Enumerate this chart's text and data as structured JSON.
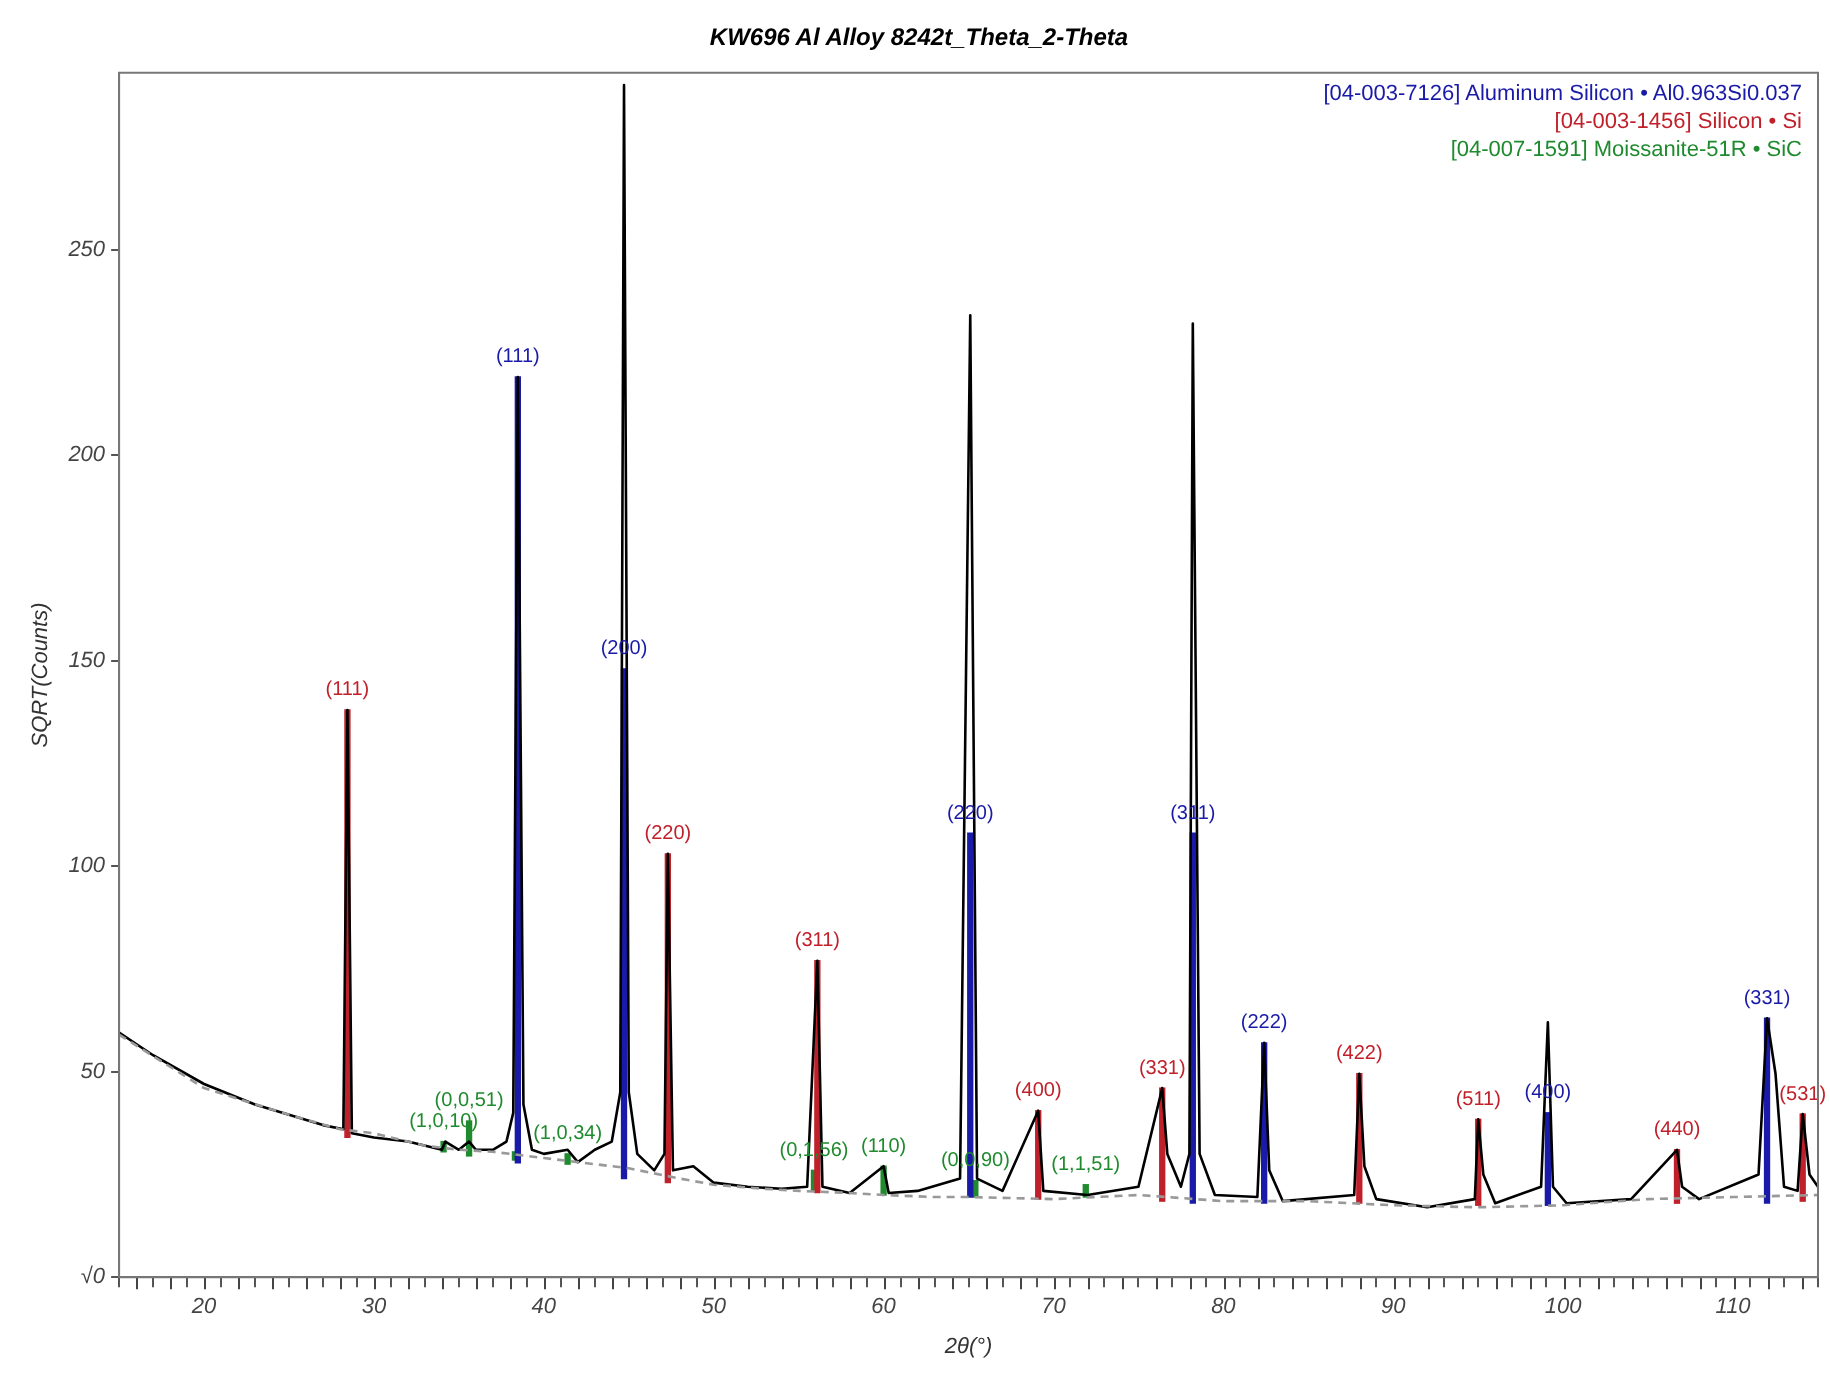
{
  "chart_data": {
    "type": "line",
    "title": "KW696 Al Alloy 8242t_Theta_2-Theta",
    "xlabel": "2θ(°)",
    "ylabel": "SQRT(Counts)",
    "xlim": [
      15,
      115
    ],
    "ylim": [
      0,
      293
    ],
    "xticks": [
      {
        "value": 16,
        "label": null
      },
      {
        "value": 18,
        "label": null
      },
      20,
      {
        "value": 22,
        "label": null
      },
      {
        "value": 24,
        "label": null
      },
      {
        "value": 26,
        "label": null
      },
      {
        "value": 28,
        "label": null
      },
      30,
      {
        "value": 32,
        "label": null
      },
      {
        "value": 34,
        "label": null
      },
      {
        "value": 36,
        "label": null
      },
      {
        "value": 38,
        "label": null
      },
      40,
      {
        "value": 42,
        "label": null
      },
      {
        "value": 44,
        "label": null
      },
      {
        "value": 46,
        "label": null
      },
      {
        "value": 48,
        "label": null
      },
      50,
      {
        "value": 52,
        "label": null
      },
      {
        "value": 54,
        "label": null
      },
      {
        "value": 56,
        "label": null
      },
      {
        "value": 58,
        "label": null
      },
      60,
      {
        "value": 62,
        "label": null
      },
      {
        "value": 64,
        "label": null
      },
      {
        "value": 66,
        "label": null
      },
      {
        "value": 68,
        "label": null
      },
      70,
      {
        "value": 72,
        "label": null
      },
      {
        "value": 74,
        "label": null
      },
      {
        "value": 76,
        "label": null
      },
      {
        "value": 78,
        "label": null
      },
      80,
      {
        "value": 82,
        "label": null
      },
      {
        "value": 84,
        "label": null
      },
      {
        "value": 86,
        "label": null
      },
      {
        "value": 88,
        "label": null
      },
      90,
      {
        "value": 92,
        "label": null
      },
      {
        "value": 94,
        "label": null
      },
      {
        "value": 96,
        "label": null
      },
      {
        "value": 98,
        "label": null
      },
      100,
      {
        "value": 102,
        "label": null
      },
      {
        "value": 104,
        "label": null
      },
      {
        "value": 106,
        "label": null
      },
      {
        "value": 108,
        "label": null
      },
      110,
      {
        "value": 112,
        "label": null
      },
      {
        "value": 114,
        "label": null
      }
    ],
    "yticks": [
      {
        "value": 0,
        "label": "√0"
      },
      50,
      100,
      150,
      200,
      250
    ],
    "grid": false,
    "legend": "top right",
    "series": [
      {
        "color": "#999999",
        "line_style": "dashed",
        "x": [
          15,
          20,
          25,
          28,
          30,
          33,
          35,
          37,
          40,
          42,
          45,
          48,
          50,
          53,
          55,
          58,
          60,
          63,
          65,
          70,
          75,
          80,
          85,
          90,
          95,
          100,
          105,
          110,
          115
        ],
        "values": [
          59,
          46,
          39.5,
          36,
          35,
          32,
          31,
          30.5,
          29,
          28,
          26.5,
          24,
          22.5,
          21.5,
          21,
          20.5,
          20,
          19.5,
          19.5,
          19,
          20,
          18.5,
          18.5,
          17.5,
          17,
          17.5,
          19,
          19.5,
          20
        ]
      },
      {
        "color": "#000000",
        "line_style": "solid",
        "x": [
          15,
          17,
          20,
          23,
          25,
          27,
          28.2,
          28.44,
          28.7,
          30,
          32,
          34,
          34.2,
          35,
          35.6,
          36,
          37,
          37.8,
          38.2,
          38.47,
          38.8,
          39.3,
          40,
          41.4,
          42,
          43,
          44,
          44.5,
          44.72,
          45,
          45.5,
          46.5,
          47.1,
          47.3,
          47.6,
          48.8,
          50,
          52,
          54,
          55.5,
          56.1,
          56.4,
          58,
          60,
          60.3,
          62,
          64.5,
          65.1,
          65.5,
          67,
          69.1,
          69.4,
          72,
          75,
          76.4,
          76.7,
          77.5,
          78,
          78.2,
          78.6,
          79.5,
          82,
          82.4,
          82.7,
          83.5,
          87.7,
          88,
          88.3,
          89,
          92,
          94.8,
          95,
          95.3,
          96,
          98.7,
          99.1,
          99.4,
          100.2,
          104,
          106.7,
          107,
          108,
          111.5,
          112,
          112.5,
          113,
          113.8,
          114.1,
          114.5,
          115
        ],
        "values": [
          59.5,
          54,
          47,
          42,
          39.5,
          37,
          36,
          138,
          35,
          34,
          33,
          31,
          33,
          31,
          33,
          31,
          31,
          33,
          40,
          219,
          42,
          31,
          30,
          31,
          28,
          31,
          33,
          45,
          290,
          45,
          30,
          26,
          30,
          103,
          26,
          27,
          23,
          22,
          21.5,
          22,
          77,
          22,
          20.5,
          27,
          20.5,
          21,
          24,
          234,
          24,
          21,
          40.5,
          21,
          20,
          22,
          46,
          30,
          22,
          30,
          232,
          30,
          20,
          19.5,
          57,
          26,
          18.5,
          20,
          49.5,
          27,
          19,
          17,
          19,
          38.4,
          25,
          18,
          22,
          62,
          22,
          18,
          19,
          31,
          22,
          19,
          25,
          63,
          49.5,
          22,
          21,
          39.7,
          25,
          22
        ]
      },
      {
        "type": "bar",
        "name": "[04-003-7126] Aluminum Silicon • Al0.963Si0.037",
        "color": "#1a1aa8",
        "x": [
          38.47,
          44.72,
          65.1,
          78.2,
          82.4,
          99.1,
          112
        ],
        "base": [
          27.8,
          24,
          19.5,
          18,
          18,
          17.5,
          18
        ],
        "values": [
          191.2,
          124,
          88.5,
          90,
          39,
          22.5,
          45
        ]
      },
      {
        "type": "bar",
        "name": "[04-003-1456] Silicon • Si",
        "color": "#c0202a",
        "x": [
          28.44,
          47.3,
          56.1,
          69.1,
          76.4,
          88,
          95,
          106.7,
          114.1
        ],
        "base": [
          34,
          23,
          20.6,
          19,
          18.5,
          18,
          17.5,
          18,
          18.5
        ],
        "values": [
          104,
          80,
          56.4,
          21.5,
          27.5,
          31.5,
          20.9,
          13,
          21.2
        ]
      },
      {
        "type": "bar",
        "name": "[04-007-1591] Moissanite-51R • SiC",
        "color": "#1f8a2e",
        "x": [
          34.1,
          35.6,
          38.3,
          41.4,
          55.9,
          60,
          65.4,
          71.9
        ],
        "base": [
          30.5,
          29.5,
          28.5,
          27.5,
          21,
          20,
          19.5,
          19.5
        ],
        "values": [
          2.5,
          8.5,
          2,
          2.5,
          5,
          7,
          4,
          3
        ]
      }
    ],
    "annotations": [
      {
        "text": "(111)",
        "x": 38.47,
        "y": 219
      },
      {
        "text": "(200)",
        "x": 44.72,
        "y": 148
      },
      {
        "text": "(220)",
        "x": 65.1,
        "y": 108
      },
      {
        "text": "(311)",
        "x": 78.2,
        "y": 108
      },
      {
        "text": "(222)",
        "x": 82.4,
        "y": 57
      },
      {
        "text": "(400)",
        "x": 99.1,
        "y": 40
      },
      {
        "text": "(331)",
        "x": 112,
        "y": 63
      },
      {
        "text": "(111)",
        "x": 28.44,
        "y": 138
      },
      {
        "text": "(220)",
        "x": 47.3,
        "y": 103
      },
      {
        "text": "(311)",
        "x": 56.1,
        "y": 77
      },
      {
        "text": "(400)",
        "x": 69.1,
        "y": 40.5
      },
      {
        "text": "(331)",
        "x": 76.4,
        "y": 46
      },
      {
        "text": "(422)",
        "x": 88,
        "y": 49.5
      },
      {
        "text": "(511)",
        "x": 95,
        "y": 38.4
      },
      {
        "text": "(440)",
        "x": 106.7,
        "y": 31
      },
      {
        "text": "(531)",
        "x": 114.1,
        "y": 39.7
      },
      {
        "text": "(1,0,10)",
        "x": 34.1,
        "y": 33
      },
      {
        "text": "(0,0,51)",
        "x": 35.6,
        "y": 38
      },
      {
        "text": "(1,0,34)",
        "x": 41.4,
        "y": 30
      },
      {
        "text": "(0,1,56)",
        "x": 55.9,
        "y": 26
      },
      {
        "text": "(110)",
        "x": 60,
        "y": 27
      },
      {
        "text": "(0,0,90)",
        "x": 65.4,
        "y": 23.5
      },
      {
        "text": "(1,1,51)",
        "x": 71.9,
        "y": 22.5
      }
    ]
  }
}
